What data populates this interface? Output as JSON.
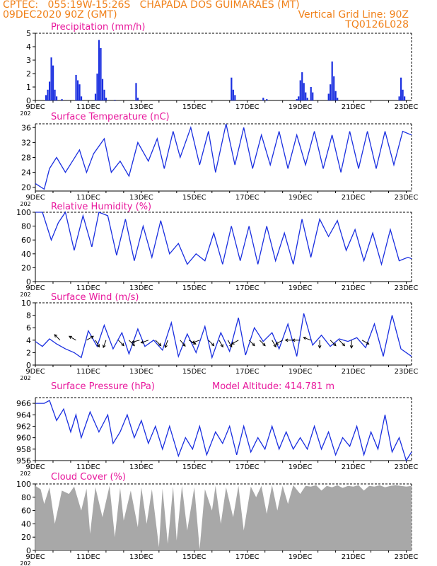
{
  "header": {
    "line1_left": "CPTEC:   055:19W-15:26S   CHAPADA DOS GUIMARAES (MT)",
    "line2_left": "09DEC2020 90Z (GMT)",
    "line2_right": "Vertical Grid Line: 90Z",
    "line3_right": "TQ0126L028",
    "color": "#f08018"
  },
  "colors": {
    "series": "#1a2fe0",
    "title": "#e8189c",
    "cloud": "#a8a8a8",
    "frame": "#000000"
  },
  "x_tick_labels": [
    "9DEC",
    "11DEC",
    "13DEC",
    "15DEC",
    "17DEC",
    "19DEC",
    "21DEC",
    "23DEC"
  ],
  "year_fragment": "202",
  "chart_data": [
    {
      "type": "bar",
      "title": "Precipitation (mm/h)",
      "ylim": [
        0,
        5
      ],
      "yticks": [
        0,
        1,
        2,
        3,
        4,
        5
      ],
      "bars": [
        [
          0.6,
          0.4
        ],
        [
          0.7,
          0.8
        ],
        [
          0.8,
          1.4
        ],
        [
          0.9,
          3.2
        ],
        [
          1.0,
          2.6
        ],
        [
          1.1,
          0.8
        ],
        [
          1.2,
          0.3
        ],
        [
          1.5,
          0.1
        ],
        [
          2.3,
          1.9
        ],
        [
          2.4,
          1.5
        ],
        [
          2.5,
          1.2
        ],
        [
          2.6,
          0.3
        ],
        [
          3.4,
          0.5
        ],
        [
          3.5,
          2.0
        ],
        [
          3.6,
          4.5
        ],
        [
          3.7,
          3.9
        ],
        [
          3.8,
          1.6
        ],
        [
          3.9,
          0.8
        ],
        [
          4.0,
          0.2
        ],
        [
          4.5,
          0.05
        ],
        [
          5.7,
          1.3
        ],
        [
          5.8,
          0.2
        ],
        [
          11.1,
          1.7
        ],
        [
          11.2,
          0.8
        ],
        [
          11.3,
          0.4
        ],
        [
          12.9,
          0.2
        ],
        [
          13.1,
          0.1
        ],
        [
          14.8,
          0.1
        ],
        [
          14.9,
          0.3
        ],
        [
          15.0,
          1.5
        ],
        [
          15.1,
          2.1
        ],
        [
          15.2,
          1.3
        ],
        [
          15.3,
          0.6
        ],
        [
          15.4,
          0.2
        ],
        [
          15.6,
          1.0
        ],
        [
          15.7,
          0.6
        ],
        [
          16.6,
          0.5
        ],
        [
          16.7,
          1.2
        ],
        [
          16.8,
          2.9
        ],
        [
          16.9,
          1.8
        ],
        [
          17.0,
          0.7
        ],
        [
          17.1,
          0.2
        ],
        [
          20.6,
          0.3
        ],
        [
          20.7,
          1.7
        ],
        [
          20.8,
          0.8
        ],
        [
          20.9,
          0.3
        ]
      ]
    },
    {
      "type": "line",
      "title": "Surface Temperature (nC)",
      "ylim": [
        19,
        37
      ],
      "yticks": [
        20,
        24,
        28,
        32,
        36
      ],
      "x": [
        0,
        0.5,
        0.8,
        1.2,
        1.7,
        2.1,
        2.5,
        2.9,
        3.3,
        3.9,
        4.3,
        4.8,
        5.3,
        5.8,
        6.4,
        6.9,
        7.3,
        7.8,
        8.2,
        8.8,
        9.3,
        9.8,
        10.2,
        10.8,
        11.3,
        11.8,
        12.3,
        12.8,
        13.3,
        13.8,
        14.3,
        14.8,
        15.3,
        15.8,
        16.3,
        16.8,
        17.3,
        17.8,
        18.3,
        18.8,
        19.3,
        19.8,
        20.3,
        20.8,
        21.3
      ],
      "y": [
        21,
        19.5,
        25,
        28,
        24,
        27,
        30,
        24,
        29,
        33,
        24,
        27,
        23,
        32,
        27,
        33,
        25,
        35,
        28,
        36,
        26,
        35,
        24,
        37,
        26,
        36,
        25,
        34,
        26,
        35,
        25,
        34,
        26,
        35,
        25,
        34,
        24,
        35,
        25,
        35,
        25,
        35,
        26,
        35,
        34
      ]
    },
    {
      "type": "line",
      "title": "Relative Humidity (%)",
      "ylim": [
        0,
        100
      ],
      "yticks": [
        0,
        20,
        40,
        60,
        80,
        100
      ],
      "x": [
        0,
        0.4,
        0.9,
        1.3,
        1.7,
        2.2,
        2.7,
        3.2,
        3.6,
        4.1,
        4.6,
        5.1,
        5.6,
        6.1,
        6.6,
        7.1,
        7.6,
        8.1,
        8.6,
        9.1,
        9.6,
        10.1,
        10.6,
        11.1,
        11.6,
        12.1,
        12.6,
        13.1,
        13.6,
        14.1,
        14.6,
        15.1,
        15.6,
        16.1,
        16.6,
        17.1,
        17.6,
        18.1,
        18.6,
        19.1,
        19.6,
        20.1,
        20.6,
        21.1,
        21.3
      ],
      "y": [
        100,
        100,
        60,
        85,
        100,
        45,
        95,
        50,
        100,
        95,
        38,
        90,
        30,
        80,
        35,
        88,
        40,
        55,
        25,
        40,
        30,
        70,
        25,
        80,
        30,
        80,
        25,
        80,
        30,
        70,
        25,
        90,
        35,
        90,
        65,
        88,
        45,
        75,
        30,
        70,
        25,
        75,
        30,
        35,
        33
      ]
    },
    {
      "type": "line",
      "title": "Surface Wind (m/s)",
      "ylim": [
        0,
        10
      ],
      "yticks": [
        0,
        2,
        4,
        6,
        8,
        10
      ],
      "x": [
        0,
        0.4,
        0.8,
        1.2,
        1.7,
        2.2,
        2.6,
        3.0,
        3.5,
        3.9,
        4.4,
        4.9,
        5.3,
        5.8,
        6.2,
        6.7,
        7.2,
        7.7,
        8.1,
        8.6,
        9.1,
        9.6,
        10.0,
        10.5,
        11.0,
        11.5,
        11.9,
        12.4,
        12.9,
        13.4,
        13.8,
        14.3,
        14.8,
        15.2,
        15.7,
        16.2,
        16.7,
        17.2,
        17.7,
        18.2,
        18.7,
        19.2,
        19.7,
        20.2,
        20.7,
        21.3
      ],
      "y": [
        3.8,
        3.0,
        4.2,
        3.4,
        2.6,
        2.0,
        1.2,
        5.5,
        3.0,
        6.4,
        2.6,
        5.2,
        1.8,
        5.8,
        3.0,
        4.0,
        2.4,
        6.8,
        1.4,
        5.0,
        2.0,
        6.2,
        1.2,
        5.2,
        2.2,
        7.6,
        1.6,
        6.0,
        3.8,
        5.2,
        2.6,
        6.6,
        1.4,
        8.3,
        3.2,
        4.8,
        3.0,
        4.2,
        3.8,
        4.4,
        2.8,
        6.6,
        1.4,
        8.0,
        2.6,
        1.4
      ],
      "arrows": [
        [
          1.4,
          225
        ],
        [
          2.3,
          210
        ],
        [
          2.9,
          330
        ],
        [
          3.4,
          60
        ],
        [
          4.0,
          110
        ],
        [
          4.7,
          45
        ],
        [
          5.3,
          45
        ],
        [
          5.9,
          165
        ],
        [
          6.4,
          160
        ],
        [
          6.8,
          45
        ],
        [
          7.5,
          110
        ],
        [
          8.2,
          50
        ],
        [
          8.7,
          30
        ],
        [
          9.3,
          160
        ],
        [
          9.8,
          45
        ],
        [
          10.4,
          60
        ],
        [
          10.9,
          60
        ],
        [
          11.5,
          150
        ],
        [
          12.1,
          45
        ],
        [
          12.7,
          45
        ],
        [
          13.4,
          60
        ],
        [
          14.0,
          150
        ],
        [
          14.6,
          180
        ],
        [
          15.0,
          180
        ],
        [
          15.6,
          200
        ],
        [
          16.1,
          90
        ],
        [
          16.7,
          45
        ],
        [
          17.2,
          45
        ],
        [
          17.9,
          90
        ],
        [
          18.5,
          30
        ]
      ]
    },
    {
      "type": "line",
      "title": "Surface Pressure (hPa)",
      "annotation": "Model Altitude: 414.781 m",
      "ylim": [
        956,
        967
      ],
      "yticks": [
        956,
        958,
        960,
        962,
        964,
        966
      ],
      "x": [
        0,
        0.5,
        0.8,
        1.2,
        1.6,
        2.0,
        2.3,
        2.6,
        3.1,
        3.6,
        4.1,
        4.4,
        4.8,
        5.2,
        5.6,
        6.0,
        6.4,
        6.8,
        7.2,
        7.6,
        8.1,
        8.5,
        8.9,
        9.3,
        9.7,
        10.2,
        10.6,
        11.0,
        11.4,
        11.8,
        12.2,
        12.6,
        13.0,
        13.4,
        13.8,
        14.2,
        14.6,
        15.0,
        15.4,
        15.8,
        16.2,
        16.6,
        17.0,
        17.4,
        17.8,
        18.2,
        18.6,
        19.0,
        19.4,
        19.8,
        20.2,
        20.6,
        21.0,
        21.3
      ],
      "y": [
        966,
        966,
        966.5,
        963,
        965,
        961,
        964,
        960,
        964.5,
        961,
        964,
        959,
        961,
        964,
        960,
        963,
        959,
        962,
        958,
        962,
        956.8,
        960,
        958,
        962,
        957,
        961,
        959,
        962,
        957,
        962,
        957.5,
        960,
        958,
        962,
        958,
        961,
        958,
        960,
        958,
        962,
        958,
        961,
        957,
        960,
        958.5,
        962,
        957,
        961,
        958,
        964,
        957.5,
        960,
        956,
        957.5
      ]
    },
    {
      "type": "area",
      "title": "Cloud Cover (%)",
      "ylim": [
        0,
        100
      ],
      "yticks": [
        0,
        20,
        40,
        60,
        80,
        100
      ],
      "x": [
        0,
        0.3,
        0.5,
        0.8,
        1.1,
        1.5,
        1.9,
        2.2,
        2.6,
        2.9,
        3.1,
        3.4,
        3.8,
        4.2,
        4.5,
        4.8,
        5.0,
        5.4,
        5.8,
        6.0,
        6.3,
        6.6,
        7.0,
        7.2,
        7.5,
        7.8,
        8.0,
        8.3,
        8.6,
        9.0,
        9.3,
        9.6,
        10.0,
        10.2,
        10.5,
        10.8,
        11.2,
        11.5,
        11.8,
        12.2,
        12.5,
        12.8,
        13.1,
        13.4,
        13.7,
        14.0,
        14.3,
        14.6,
        15.0,
        15.3,
        15.6,
        15.9,
        16.2,
        16.5,
        16.8,
        17.1,
        17.4,
        17.7,
        18.0,
        18.3,
        18.6,
        18.9,
        19.2,
        19.5,
        19.8,
        20.1,
        20.4,
        20.7,
        21.0,
        21.3
      ],
      "y": [
        97,
        92,
        70,
        95,
        40,
        90,
        85,
        96,
        60,
        93,
        25,
        95,
        50,
        97,
        20,
        94,
        45,
        90,
        35,
        95,
        40,
        92,
        5,
        93,
        10,
        96,
        15,
        97,
        30,
        95,
        2,
        92,
        60,
        97,
        40,
        95,
        50,
        97,
        30,
        96,
        80,
        97,
        55,
        98,
        60,
        97,
        70,
        98,
        85,
        97,
        96,
        98,
        90,
        97,
        95,
        98,
        94,
        97,
        96,
        98,
        90,
        97,
        96,
        98,
        95,
        97,
        98,
        97,
        96,
        97
      ]
    }
  ]
}
